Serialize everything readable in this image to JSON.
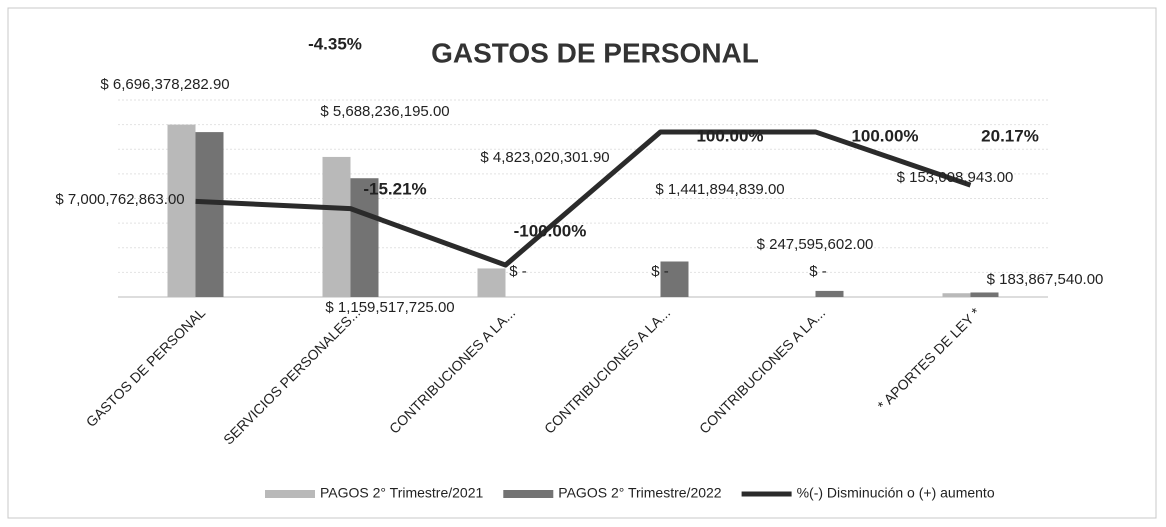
{
  "chart_data": {
    "type": "bar",
    "title": "GASTOS DE PERSONAL",
    "categories": [
      "GASTOS DE PERSONAL",
      "SERVICIOS PERSONALES...",
      "CONTRIBUCIONES A LA...",
      "CONTRIBUCIONES A LA...",
      "CONTRIBUCIONES A LA...",
      "* APORTES DE LEY *"
    ],
    "ylim": [
      0,
      8000000000
    ],
    "y2lim": [
      -148,
      148
    ],
    "grid": true,
    "legend": "bottom",
    "series": [
      {
        "name": "PAGOS  2° Trimestre/2021",
        "color": "#b9b9b9",
        "type": "bar",
        "values": [
          7000762863.0,
          5688236195.0,
          1159517725.0,
          0,
          0,
          153008943.0
        ],
        "value_labels": [
          "$ 7,000,762,863.00",
          "$ 5,688,236,195.00",
          "$ 1,159,517,725.00",
          "$ -",
          "$ -",
          "$ 153,008,943.00"
        ]
      },
      {
        "name": "PAGOS  2° Trimestre/2022",
        "color": "#737373",
        "type": "bar",
        "values": [
          6696378282.9,
          4823020301.9,
          0,
          1441894839.0,
          247595602.0,
          183867540.0
        ],
        "value_labels": [
          "$ 6,696,378,282.90",
          "$ 4,823,020,301.90",
          "$ -",
          "$ 1,441,894,839.00",
          "$ 247,595,602.00",
          "$ 183,867,540.00"
        ]
      },
      {
        "name": "%(-) Disminución o (+) aumento",
        "color": "#2b2b2b",
        "type": "line",
        "axis": "y2",
        "values": [
          -4.35,
          -15.21,
          -100.0,
          100.0,
          100.0,
          20.17
        ],
        "value_labels": [
          "-4.35%",
          "-15.21%",
          "-100.00%",
          "100.00%",
          "100.00%",
          "20.17%"
        ]
      }
    ]
  }
}
